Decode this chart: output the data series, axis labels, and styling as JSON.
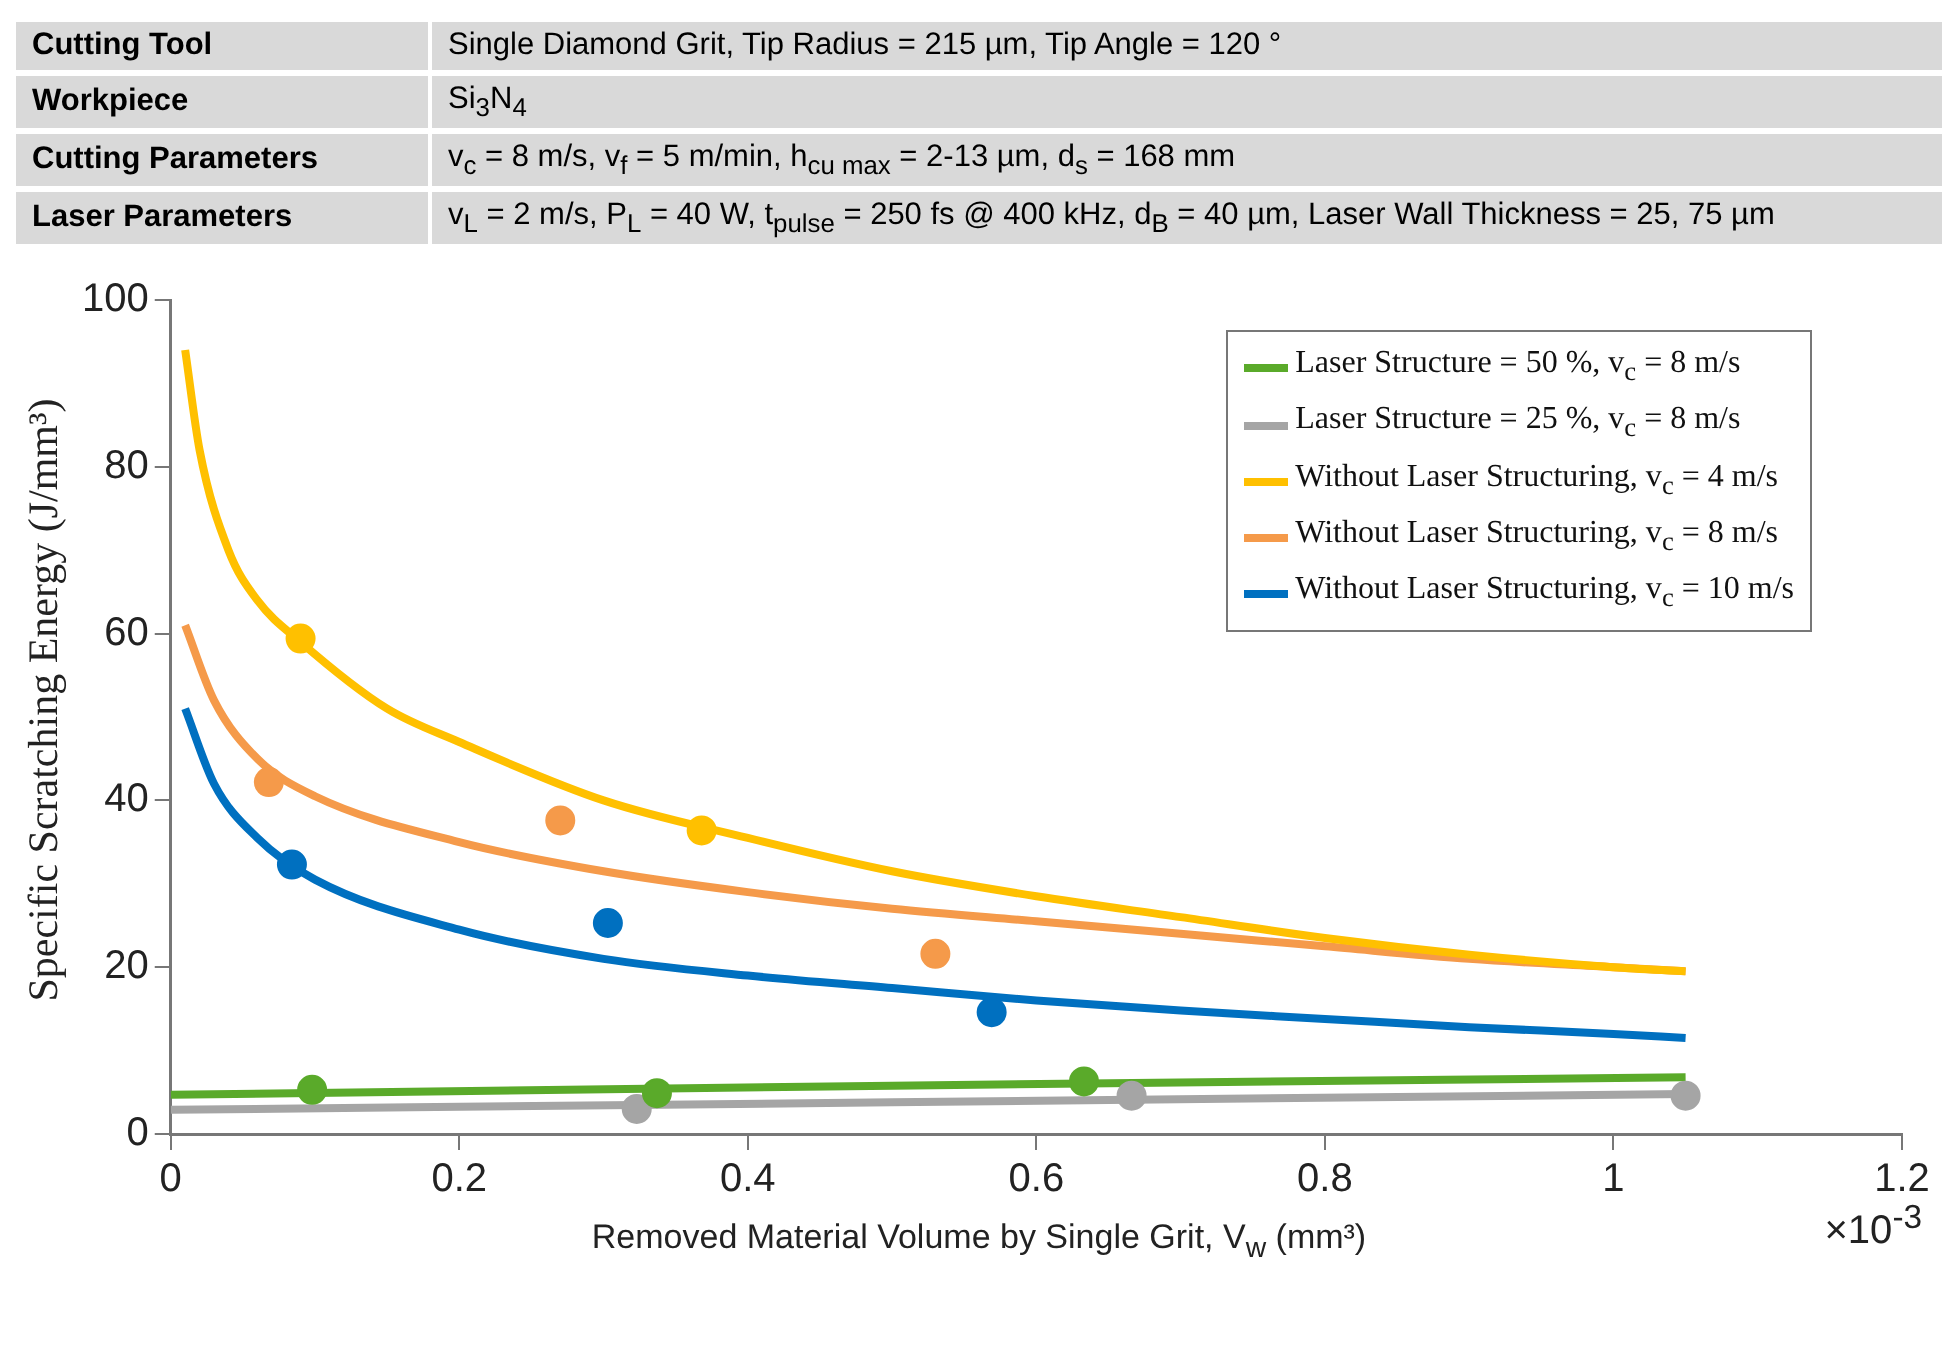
{
  "chart_data": {
    "type": "line",
    "xlabel": "Removed Material Volume by Single Grit, V$_{w}$ (mm³)",
    "ylabel": "Specific Scratching Energy (J/mm³)",
    "annotations": [
      "Cutting Tool",
      "Single Diamond Grit, Tip Radius = 215 µm, Tip Angle = 120 °",
      "Workpiece",
      "Si$_{3}$N$_{4}$",
      "Cutting Parameters",
      "v$_{c}$ = 8 m/s, v$_{f}$ = 5 m/min, h$_{cu max}$ = 2-13 µm, d$_{s}$ = 168 mm",
      "Laser Parameters",
      "v$_{L}$ = 2 m/s, P$_{L}$ = 40 W, t$_{pulse}$ = 250 fs @ 400 kHz, d$_{B}$ = 40 µm, Laser Wall Thickness = 25, 75 µm",
      "×10$^{-3}$"
    ],
    "xlim": [
      0,
      1.2
    ],
    "xticks": [
      0,
      0.2,
      0.4,
      0.6,
      0.8,
      1,
      1.2
    ],
    "ylim": [
      0,
      100
    ],
    "yticks": [
      0,
      20,
      40,
      60,
      80,
      100
    ],
    "grid": false,
    "legend": "top right",
    "series": [
      {
        "name": "Laser Structure = 50 %, v$_{c}$ = 8 m/s",
        "type": "line",
        "color": "#5aaa2a",
        "x": [
          0,
          0.5,
          1.05
        ],
        "values": [
          4.7,
          5.8,
          6.8
        ]
      },
      {
        "name": "Laser Structure = 25 %, v$_{c}$ = 8 m/s",
        "type": "line",
        "color": "#a5a5a5",
        "x": [
          0,
          0.5,
          1.05
        ],
        "values": [
          2.9,
          3.8,
          4.8
        ]
      },
      {
        "name": "Without Laser Structuring, v$_{c}$ = 4 m/s",
        "type": "line",
        "color": "#ffc000",
        "x": [
          0.01,
          0.02,
          0.04,
          0.06,
          0.09,
          0.15,
          0.2,
          0.3,
          0.4,
          0.5,
          0.6,
          0.7,
          0.8,
          0.9,
          1.0,
          1.05
        ],
        "values": [
          94,
          82,
          70,
          64,
          59,
          51,
          47,
          40,
          35.5,
          31.5,
          28.5,
          26,
          23.5,
          21.5,
          20,
          19.5
        ]
      },
      {
        "name": "Without Laser Structuring, v$_{c}$ = 8 m/s",
        "type": "line",
        "color": "#f59a4a",
        "x": [
          0.01,
          0.03,
          0.06,
          0.1,
          0.2,
          0.3,
          0.4,
          0.5,
          0.6,
          0.7,
          0.8,
          0.9,
          1.0,
          1.05
        ],
        "values": [
          61,
          52,
          45,
          40.5,
          35,
          31.5,
          29,
          27,
          25.5,
          24,
          22.5,
          21,
          20,
          19.5
        ]
      },
      {
        "name": "Without Laser Structuring, v$_{c}$ = 10 m/s",
        "type": "line",
        "color": "#0070c0",
        "x": [
          0.01,
          0.03,
          0.06,
          0.1,
          0.2,
          0.3,
          0.4,
          0.5,
          0.6,
          0.7,
          0.8,
          0.9,
          1.0,
          1.05
        ],
        "values": [
          51,
          42,
          35.5,
          30.5,
          24.5,
          21,
          19,
          17.5,
          16,
          14.8,
          13.8,
          12.8,
          12,
          11.5
        ]
      },
      {
        "type": "scatter",
        "color": "#5aaa2a",
        "x": [
          0.098,
          0.337,
          0.633
        ],
        "values": [
          5.3,
          4.9,
          6.3
        ]
      },
      {
        "type": "scatter",
        "color": "#a5a5a5",
        "x": [
          0.323,
          0.666,
          1.05
        ],
        "values": [
          3.0,
          4.6,
          4.6
        ]
      },
      {
        "type": "scatter",
        "color": "#ffc000",
        "x": [
          0.09,
          0.368
        ],
        "values": [
          59.4,
          36.4
        ]
      },
      {
        "type": "scatter",
        "color": "#f59a4a",
        "x": [
          0.068,
          0.27,
          0.53
        ],
        "values": [
          42.2,
          37.6,
          21.6
        ]
      },
      {
        "type": "scatter",
        "color": "#0070c0",
        "x": [
          0.084,
          0.303,
          0.569
        ],
        "values": [
          32.3,
          25.3,
          14.6
        ]
      }
    ]
  }
}
